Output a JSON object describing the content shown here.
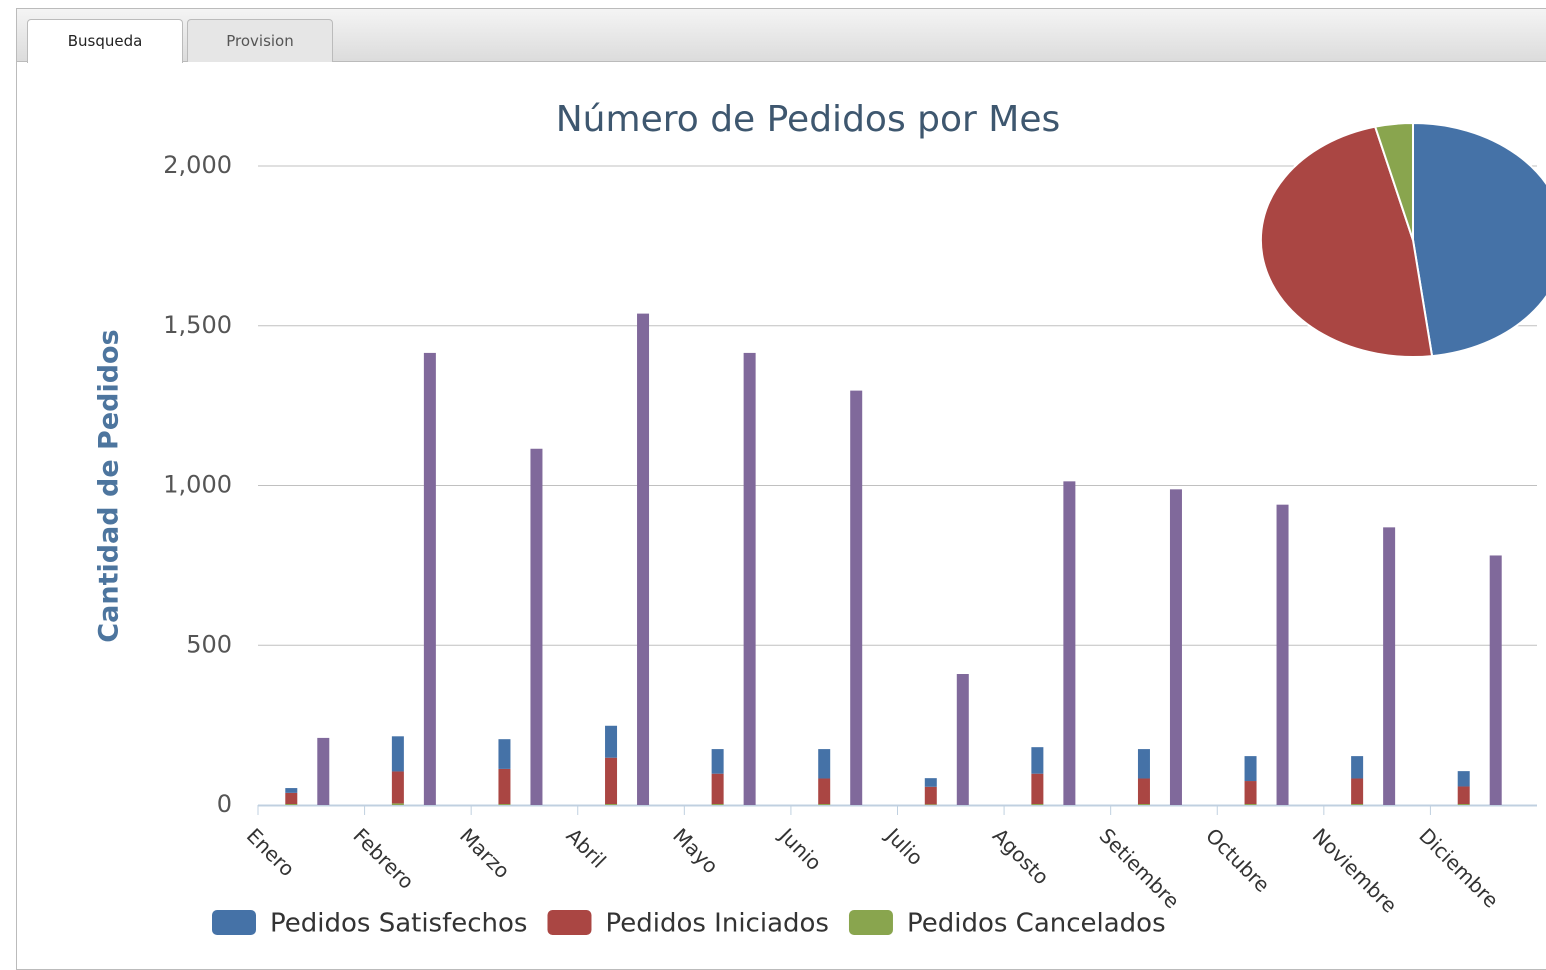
{
  "tabs": [
    "Busqueda",
    "Provision"
  ],
  "chart_data": [
    {
      "type": "bar",
      "title": "Número de Pedidos por Mes",
      "y_label": "Cantidad de Pedidos",
      "categories": [
        "Enero",
        "Febrero",
        "Marzo",
        "Abril",
        "Mayo",
        "Junio",
        "Julio",
        "Agosto",
        "Setiembre",
        "Octubre",
        "Noviembre",
        "Diciembre"
      ],
      "series": [
        {
          "name": "Pedidos Satisfechos",
          "color": "#4572a7",
          "values": [
            15,
            110,
            93,
            100,
            77,
            92,
            27,
            83,
            92,
            78,
            70,
            48
          ]
        },
        {
          "name": "Pedidos Iniciados",
          "color": "#aa4643",
          "values": [
            35,
            100,
            110,
            145,
            95,
            80,
            55,
            95,
            80,
            72,
            80,
            55
          ]
        },
        {
          "name": "Pedidos Cancelados",
          "color": "#89a54e",
          "values": [
            3,
            5,
            3,
            3,
            3,
            3,
            2,
            3,
            3,
            3,
            3,
            3
          ]
        },
        {
          "color": "#80699b",
          "values": [
            210,
            1415,
            1115,
            1538,
            1415,
            1297,
            410,
            1013,
            988,
            940,
            869,
            781
          ]
        }
      ],
      "ylim": [
        0,
        2000
      ],
      "yticks": [
        0,
        {
          "value": 500,
          "label": "500"
        },
        {
          "value": 1000,
          "label": "1,000"
        },
        {
          "value": 1500,
          "label": "1,500"
        },
        {
          "value": 2000,
          "label": "2,000"
        }
      ],
      "grid": true
    },
    {
      "type": "pie",
      "values": [
        48,
        48,
        4
      ],
      "colors": [
        "#4572a7",
        "#aa4643",
        "#89a54e"
      ]
    }
  ]
}
